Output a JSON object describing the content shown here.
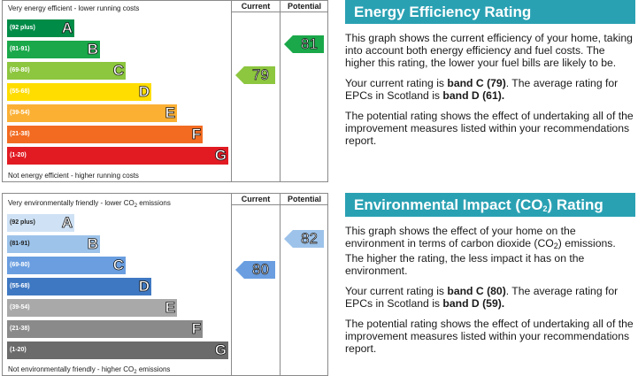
{
  "energy": {
    "cap_top": "Very energy efficient - lower running costs",
    "cap_bottom": "Not energy efficient - higher running costs",
    "col_current": "Current",
    "col_potential": "Potential",
    "bands": [
      {
        "range": "(92 plus)",
        "letter": "A",
        "color": "#008c47"
      },
      {
        "range": "(81-91)",
        "letter": "B",
        "color": "#1aa84a"
      },
      {
        "range": "(69-80)",
        "letter": "C",
        "color": "#8dc63f"
      },
      {
        "range": "(55-68)",
        "letter": "D",
        "color": "#ffdd00"
      },
      {
        "range": "(39-54)",
        "letter": "E",
        "color": "#fbb034"
      },
      {
        "range": "(21-38)",
        "letter": "F",
        "color": "#f26b21"
      },
      {
        "range": "(1-20)",
        "letter": "G",
        "color": "#e21b23"
      }
    ],
    "current": {
      "value": "79",
      "band": "C",
      "color": "#8dc63f"
    },
    "potential": {
      "value": "81",
      "band": "B",
      "color": "#1aa84a"
    }
  },
  "environment": {
    "cap_top_a": "Very environmentally friendly - lower CO",
    "cap_top_sub": "2",
    "cap_top_b": " emissions",
    "cap_bottom_a": "Not environmentally friendly - higher CO",
    "cap_bottom_sub": "2",
    "cap_bottom_b": " emissions",
    "col_current": "Current",
    "col_potential": "Potential",
    "bands": [
      {
        "range": "(92 plus)",
        "letter": "A",
        "color": "#cfe2f5"
      },
      {
        "range": "(81-91)",
        "letter": "B",
        "color": "#9dc3ea"
      },
      {
        "range": "(69-80)",
        "letter": "C",
        "color": "#6a9ee0"
      },
      {
        "range": "(55-68)",
        "letter": "D",
        "color": "#3f78c2"
      },
      {
        "range": "(39-54)",
        "letter": "E",
        "color": "#a9a9a9"
      },
      {
        "range": "(21-38)",
        "letter": "F",
        "color": "#8a8a8a"
      },
      {
        "range": "(1-20)",
        "letter": "G",
        "color": "#6b6b6b"
      }
    ],
    "current": {
      "value": "80",
      "band": "C",
      "color": "#6a9ee0"
    },
    "potential": {
      "value": "82",
      "band": "B",
      "color": "#9dc3ea"
    }
  },
  "panel_energy": {
    "title": "Energy Efficiency Rating",
    "p1": "This graph shows the current efficiency of your home, taking into account both energy efficiency and fuel costs. The higher this rating, the lower your fuel bills are likely to be.",
    "p2_a": "Your current rating is ",
    "p2_b": "band C (79)",
    "p2_c": ". The average rating for EPCs in Scotland is ",
    "p2_d": "band D (61).",
    "p3": "The potential rating shows the effect of undertaking all of the improvement measures listed within your recommendations report."
  },
  "panel_env": {
    "title_a": "Environmental Impact (CO",
    "title_sub": "2",
    "title_b": ") Rating",
    "p1_a": "This graph shows the effect of your home on the environment in terms of carbon dioxide (CO",
    "p1_sub": "2",
    "p1_b": ") emissions. The higher the rating, the less impact it has on the environment.",
    "p2_a": "Your current rating is ",
    "p2_b": "band C (80)",
    "p2_c": ". The average rating for EPCs in Scotland is ",
    "p2_d": "band D (59).",
    "p3": "The potential rating shows the effect of undertaking all of the improvement measures listed within your recommendations report."
  }
}
